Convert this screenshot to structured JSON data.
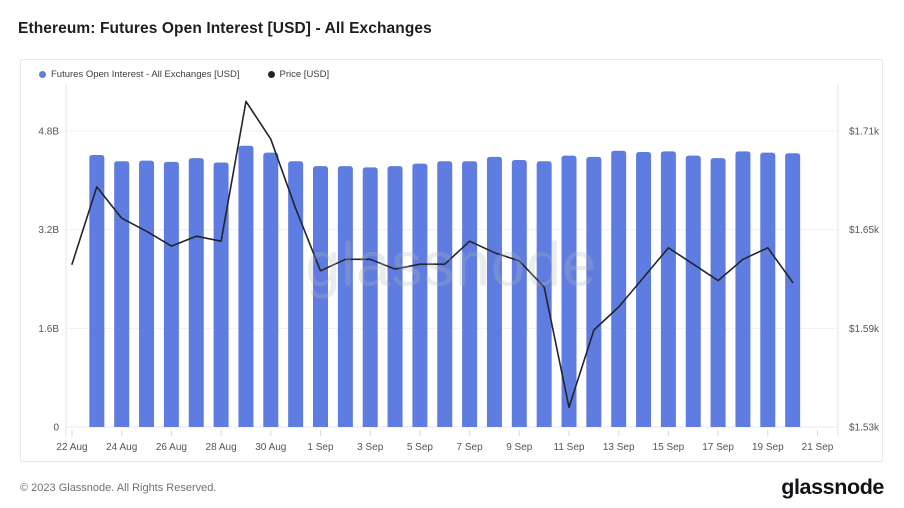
{
  "title": "Ethereum: Futures Open Interest [USD] - All Exchanges",
  "legend": [
    {
      "label": "Futures Open Interest - All Exchanges [USD]",
      "color": "#5f7ce0"
    },
    {
      "label": "Price [USD]",
      "color": "#23252b"
    }
  ],
  "footer": {
    "copyright": "© 2023 Glassnode. All Rights Reserved.",
    "brand": "glassnode"
  },
  "watermark": "glassnode",
  "chart_data": {
    "type": "bar",
    "subtype": "dual-axis bar+line time series",
    "title": "Ethereum: Futures Open Interest [USD] - All Exchanges",
    "x": [
      "22 Aug",
      "23 Aug",
      "24 Aug",
      "25 Aug",
      "26 Aug",
      "27 Aug",
      "28 Aug",
      "29 Aug",
      "30 Aug",
      "31 Aug",
      "1 Sep",
      "2 Sep",
      "3 Sep",
      "4 Sep",
      "5 Sep",
      "6 Sep",
      "7 Sep",
      "8 Sep",
      "9 Sep",
      "10 Sep",
      "11 Sep",
      "12 Sep",
      "13 Sep",
      "14 Sep",
      "15 Sep",
      "16 Sep",
      "17 Sep",
      "18 Sep",
      "19 Sep",
      "20 Sep"
    ],
    "x_tick_labels": [
      "22 Aug",
      "24 Aug",
      "26 Aug",
      "28 Aug",
      "30 Aug",
      "1 Sep",
      "3 Sep",
      "5 Sep",
      "7 Sep",
      "9 Sep",
      "11 Sep",
      "13 Sep",
      "15 Sep",
      "17 Sep",
      "19 Sep",
      "21 Sep"
    ],
    "series": [
      {
        "name": "Futures Open Interest - All Exchanges [USD]",
        "type": "bar",
        "axis": "left",
        "unit": "B USD",
        "color": "#5f7ce0",
        "values": [
          null,
          4.41,
          4.31,
          4.32,
          4.3,
          4.36,
          4.29,
          4.56,
          4.45,
          4.31,
          4.23,
          4.23,
          4.21,
          4.23,
          4.27,
          4.31,
          4.31,
          4.38,
          4.33,
          4.31,
          4.4,
          4.38,
          4.48,
          4.46,
          4.47,
          4.4,
          4.36,
          4.47,
          4.45,
          4.44
        ]
      },
      {
        "name": "Price [USD]",
        "type": "line",
        "axis": "right",
        "unit": "k USD",
        "color": "#23252b",
        "values": [
          1.629,
          1.676,
          1.657,
          1.649,
          1.64,
          1.646,
          1.643,
          1.728,
          1.705,
          1.663,
          1.625,
          1.632,
          1.632,
          1.626,
          1.629,
          1.629,
          1.643,
          1.636,
          1.631,
          1.615,
          1.542,
          1.589,
          1.603,
          1.621,
          1.639,
          1.629,
          1.619,
          1.632,
          1.639,
          1.618
        ]
      }
    ],
    "left_axis": {
      "tick_labels": [
        "0",
        "1.6B",
        "3.2B",
        "4.8B"
      ],
      "tick_values_B": [
        0,
        1.6,
        3.2,
        4.8
      ]
    },
    "right_axis": {
      "tick_labels": [
        "$1.53k",
        "$1.59k",
        "$1.65k",
        "$1.71k"
      ],
      "tick_values_k": [
        1.53,
        1.59,
        1.65,
        1.71
      ]
    },
    "grid": true,
    "legend_position": "top-left"
  }
}
